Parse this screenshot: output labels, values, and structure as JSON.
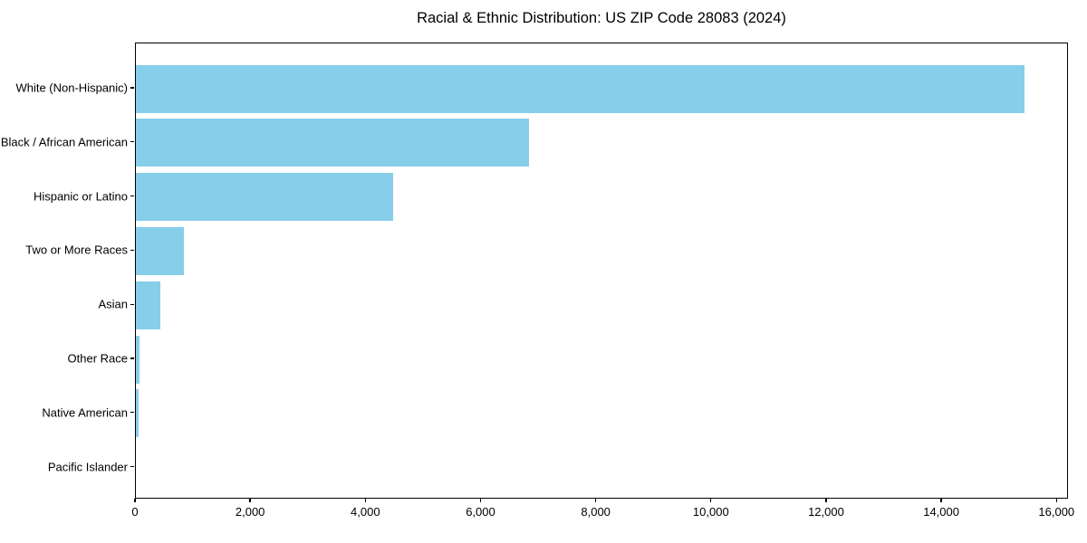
{
  "chart_data": {
    "type": "bar",
    "orientation": "horizontal",
    "title": "Racial & Ethnic Distribution: US ZIP Code 28083 (2024)",
    "categories": [
      "White (Non-Hispanic)",
      "Black / African American",
      "Hispanic or Latino",
      "Two or More Races",
      "Asian",
      "Other Race",
      "Native American",
      "Pacific Islander"
    ],
    "values": [
      15430,
      6830,
      4470,
      830,
      420,
      55,
      40,
      0
    ],
    "xlabel": "",
    "ylabel": "",
    "xlim": [
      0,
      16200
    ],
    "xticks": {
      "values": [
        0,
        2000,
        4000,
        6000,
        8000,
        10000,
        12000,
        14000,
        16000
      ],
      "labels": [
        "0",
        "2,000",
        "4,000",
        "6,000",
        "8,000",
        "10,000",
        "12,000",
        "14,000",
        "16,000"
      ]
    },
    "grid": false,
    "legend": null,
    "bar_color": "#87CEEB",
    "background_color": "#ffffff",
    "axis_color": "#000000",
    "text_color": "#000000"
  }
}
